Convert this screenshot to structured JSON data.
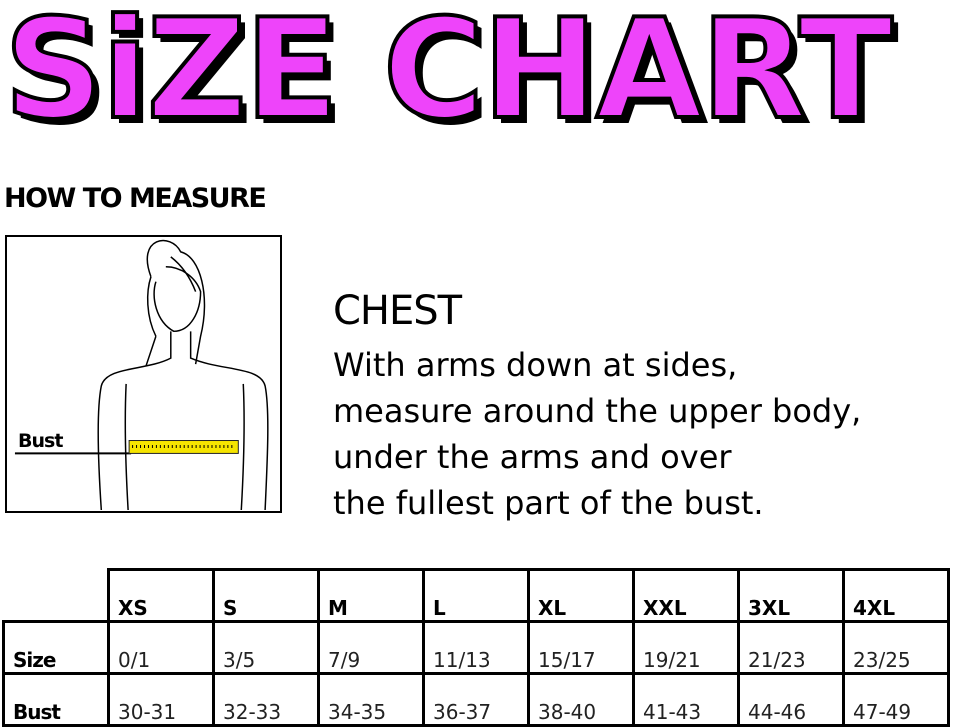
{
  "title": "SiZE CHART",
  "how_to_measure": "HOW TO MEASURE",
  "figure": {
    "bust_label": "Bust",
    "tape_color": "#f5e400"
  },
  "chest": {
    "heading": "CHEST",
    "lines": [
      "With arms down at sides,",
      "measure around the upper body,",
      "under the arms and over",
      "the fullest part of the bust."
    ]
  },
  "table": {
    "columns": [
      "XS",
      "S",
      "M",
      "L",
      "XL",
      "XXL",
      "3XL",
      "4XL"
    ],
    "rows": [
      {
        "label": "Size",
        "values": [
          "0/1",
          "3/5",
          "7/9",
          "11/13",
          "15/17",
          "19/21",
          "21/23",
          "23/25"
        ]
      },
      {
        "label": "Bust",
        "values": [
          "30-31",
          "32-33",
          "34-35",
          "36-37",
          "38-40",
          "41-43",
          "44-46",
          "47-49"
        ]
      }
    ]
  },
  "colors": {
    "title_fill": "#ee44fa"
  }
}
